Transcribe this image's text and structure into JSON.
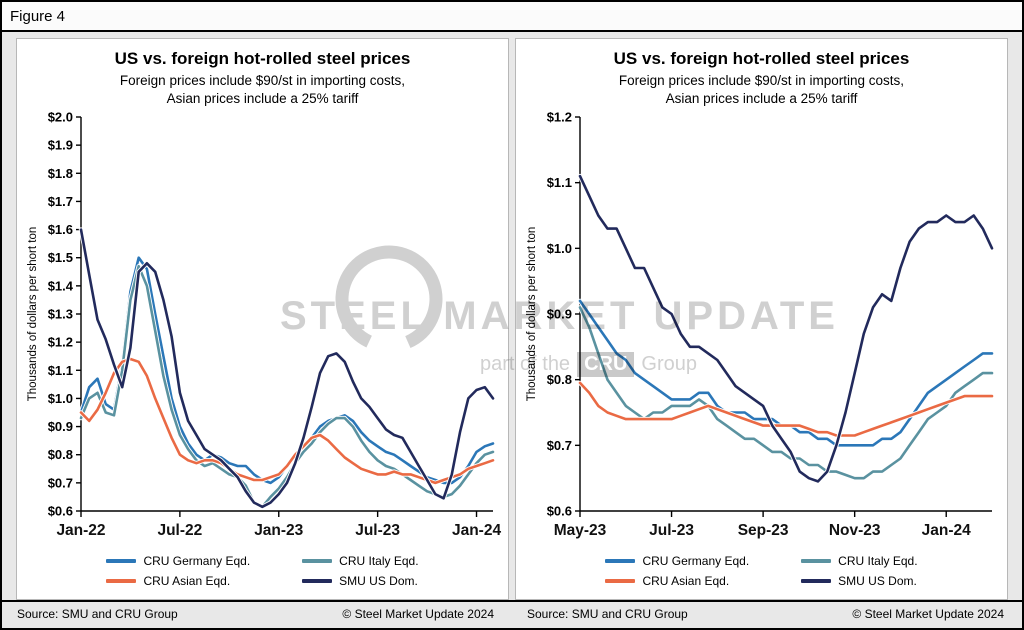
{
  "figure_label": "Figure 4",
  "watermark": {
    "title": "STEEL MARKET UPDATE",
    "sub_prefix": "part of the",
    "sub_box": "CRU",
    "sub_suffix": "Group"
  },
  "chart_data": [
    {
      "type": "line",
      "title": "US vs. foreign hot-rolled steel prices",
      "subtitle1": "Foreign prices include $90/st in importing costs,",
      "subtitle2": "Asian prices include a 25% tariff",
      "ylabel": "Thousands of dollars per short ton",
      "ylim": [
        0.6,
        2.0
      ],
      "ystep": 0.1,
      "xlim": [
        0,
        25
      ],
      "x_step": 0.5,
      "grid": false,
      "legend_position": "bottom",
      "xticks": [
        {
          "pos": 0,
          "label": "Jan-22"
        },
        {
          "pos": 6,
          "label": "Jul-22"
        },
        {
          "pos": 12,
          "label": "Jan-23"
        },
        {
          "pos": 18,
          "label": "Jul-23"
        },
        {
          "pos": 24,
          "label": "Jan-24"
        }
      ],
      "series": [
        {
          "name": "CRU Germany Eqd.",
          "color": "#2B77B8",
          "y": [
            0.95,
            1.04,
            1.07,
            0.98,
            0.96,
            1.12,
            1.38,
            1.5,
            1.46,
            1.3,
            1.15,
            1.0,
            0.9,
            0.84,
            0.8,
            0.78,
            0.8,
            0.79,
            0.77,
            0.76,
            0.76,
            0.73,
            0.71,
            0.7,
            0.72,
            0.76,
            0.8,
            0.83,
            0.86,
            0.9,
            0.92,
            0.93,
            0.94,
            0.92,
            0.88,
            0.85,
            0.83,
            0.81,
            0.8,
            0.78,
            0.76,
            0.74,
            0.72,
            0.71,
            0.7,
            0.7,
            0.72,
            0.76,
            0.81,
            0.83,
            0.84
          ]
        },
        {
          "name": "CRU Italy Eqd.",
          "color": "#5A92A0",
          "y": [
            0.93,
            1.0,
            1.02,
            0.95,
            0.94,
            1.1,
            1.35,
            1.47,
            1.4,
            1.24,
            1.08,
            0.96,
            0.87,
            0.82,
            0.78,
            0.76,
            0.77,
            0.75,
            0.73,
            0.72,
            0.69,
            0.63,
            0.615,
            0.65,
            0.68,
            0.72,
            0.77,
            0.81,
            0.84,
            0.88,
            0.91,
            0.93,
            0.93,
            0.9,
            0.85,
            0.81,
            0.78,
            0.76,
            0.75,
            0.73,
            0.71,
            0.69,
            0.67,
            0.66,
            0.65,
            0.66,
            0.69,
            0.73,
            0.77,
            0.8,
            0.81
          ]
        },
        {
          "name": "CRU Asian Eqd.",
          "color": "#EA6A44",
          "y": [
            0.95,
            0.92,
            0.96,
            1.02,
            1.09,
            1.13,
            1.14,
            1.13,
            1.08,
            1.0,
            0.93,
            0.86,
            0.8,
            0.78,
            0.77,
            0.78,
            0.78,
            0.77,
            0.75,
            0.73,
            0.72,
            0.71,
            0.71,
            0.72,
            0.73,
            0.76,
            0.8,
            0.83,
            0.86,
            0.87,
            0.85,
            0.82,
            0.79,
            0.77,
            0.75,
            0.74,
            0.73,
            0.73,
            0.74,
            0.73,
            0.73,
            0.72,
            0.71,
            0.7,
            0.71,
            0.72,
            0.73,
            0.75,
            0.76,
            0.77,
            0.78
          ]
        },
        {
          "name": "SMU US Dom.",
          "color": "#222A5C",
          "y": [
            1.6,
            1.44,
            1.28,
            1.21,
            1.12,
            1.04,
            1.18,
            1.45,
            1.48,
            1.45,
            1.35,
            1.22,
            1.02,
            0.92,
            0.87,
            0.82,
            0.8,
            0.78,
            0.75,
            0.72,
            0.67,
            0.63,
            0.615,
            0.63,
            0.66,
            0.7,
            0.77,
            0.86,
            0.97,
            1.09,
            1.15,
            1.16,
            1.13,
            1.06,
            1.0,
            0.97,
            0.93,
            0.89,
            0.87,
            0.86,
            0.81,
            0.76,
            0.71,
            0.66,
            0.645,
            0.73,
            0.88,
            1.0,
            1.03,
            1.04,
            1.0
          ]
        }
      ],
      "source": "Source: SMU and CRU Group",
      "copyright": "© Steel Market Update 2024"
    },
    {
      "type": "line",
      "title": "US vs. foreign hot-rolled steel prices",
      "subtitle1": "Foreign prices include $90/st in importing costs,",
      "subtitle2": "Asian prices include a 25% tariff",
      "ylabel": "Thousands of dollars per short ton",
      "ylim": [
        0.6,
        1.2
      ],
      "ystep": 0.1,
      "xlim": [
        0,
        9
      ],
      "x_step": 0.2,
      "grid": false,
      "legend_position": "bottom",
      "xticks": [
        {
          "pos": 0,
          "label": "May-23"
        },
        {
          "pos": 2,
          "label": "Jul-23"
        },
        {
          "pos": 4,
          "label": "Sep-23"
        },
        {
          "pos": 6,
          "label": "Nov-23"
        },
        {
          "pos": 8,
          "label": "Jan-24"
        }
      ],
      "series": [
        {
          "name": "CRU Germany Eqd.",
          "color": "#2B77B8",
          "y": [
            0.92,
            0.9,
            0.88,
            0.86,
            0.84,
            0.83,
            0.81,
            0.8,
            0.79,
            0.78,
            0.77,
            0.77,
            0.77,
            0.78,
            0.78,
            0.76,
            0.75,
            0.75,
            0.75,
            0.74,
            0.74,
            0.74,
            0.73,
            0.73,
            0.72,
            0.72,
            0.71,
            0.71,
            0.7,
            0.7,
            0.7,
            0.7,
            0.7,
            0.71,
            0.71,
            0.72,
            0.74,
            0.76,
            0.78,
            0.79,
            0.8,
            0.81,
            0.82,
            0.83,
            0.84,
            0.84
          ]
        },
        {
          "name": "CRU Italy Eqd.",
          "color": "#5A92A0",
          "y": [
            0.91,
            0.88,
            0.84,
            0.8,
            0.78,
            0.76,
            0.75,
            0.74,
            0.75,
            0.75,
            0.76,
            0.76,
            0.76,
            0.77,
            0.76,
            0.74,
            0.73,
            0.72,
            0.71,
            0.71,
            0.7,
            0.69,
            0.69,
            0.68,
            0.68,
            0.67,
            0.67,
            0.66,
            0.66,
            0.655,
            0.65,
            0.65,
            0.66,
            0.66,
            0.67,
            0.68,
            0.7,
            0.72,
            0.74,
            0.75,
            0.76,
            0.78,
            0.79,
            0.8,
            0.81,
            0.81
          ]
        },
        {
          "name": "CRU Asian Eqd.",
          "color": "#EA6A44",
          "y": [
            0.795,
            0.78,
            0.76,
            0.75,
            0.745,
            0.74,
            0.74,
            0.74,
            0.74,
            0.74,
            0.74,
            0.745,
            0.75,
            0.755,
            0.76,
            0.755,
            0.75,
            0.745,
            0.74,
            0.735,
            0.73,
            0.73,
            0.73,
            0.73,
            0.73,
            0.725,
            0.72,
            0.72,
            0.715,
            0.715,
            0.715,
            0.72,
            0.725,
            0.73,
            0.735,
            0.74,
            0.745,
            0.75,
            0.755,
            0.76,
            0.765,
            0.77,
            0.775,
            0.775,
            0.775,
            0.775
          ]
        },
        {
          "name": "SMU US Dom.",
          "color": "#222A5C",
          "y": [
            1.11,
            1.08,
            1.05,
            1.03,
            1.03,
            1.0,
            0.97,
            0.97,
            0.94,
            0.91,
            0.9,
            0.87,
            0.85,
            0.85,
            0.84,
            0.83,
            0.81,
            0.79,
            0.78,
            0.77,
            0.76,
            0.73,
            0.71,
            0.69,
            0.66,
            0.65,
            0.645,
            0.66,
            0.7,
            0.75,
            0.81,
            0.87,
            0.91,
            0.93,
            0.92,
            0.97,
            1.01,
            1.03,
            1.04,
            1.04,
            1.05,
            1.04,
            1.04,
            1.05,
            1.03,
            1.0
          ]
        }
      ],
      "source": "Source: SMU and CRU Group",
      "copyright": "© Steel Market Update 2024"
    }
  ]
}
